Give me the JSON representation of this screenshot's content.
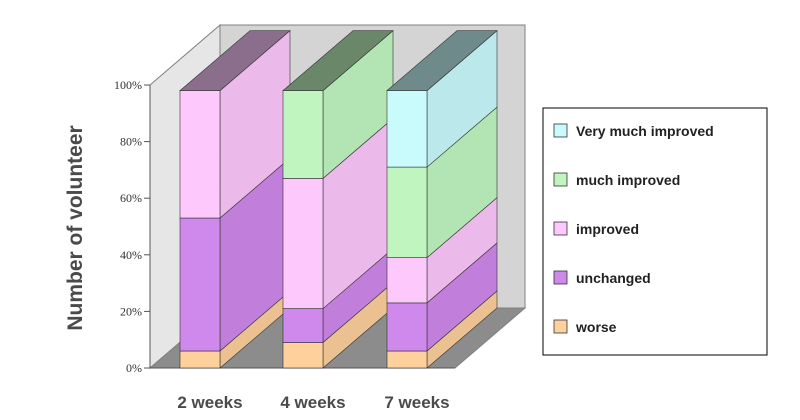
{
  "chart_data": {
    "type": "bar",
    "stacked": true,
    "three_d": true,
    "title": "",
    "xlabel": "",
    "ylabel": "Number of volunteer",
    "ylim": [
      0,
      100
    ],
    "yticks": [
      "0%",
      "20%",
      "40%",
      "60%",
      "80%",
      "100%"
    ],
    "categories": [
      "2 weeks",
      "4 weeks",
      "7 weeks"
    ],
    "series": [
      {
        "name": "worse",
        "values": [
          6,
          9,
          6
        ],
        "color": "#fdd09c"
      },
      {
        "name": "unchanged",
        "values": [
          47,
          12,
          17
        ],
        "color": "#cf88ec"
      },
      {
        "name": "improved",
        "values": [
          45,
          46,
          16
        ],
        "color": "#fdc8fc"
      },
      {
        "name": "much improved",
        "values": [
          0,
          31,
          32
        ],
        "color": "#c0f5c0"
      },
      {
        "name": "Very much improved",
        "values": [
          0,
          0,
          27
        ],
        "color": "#c9fbfd"
      }
    ],
    "legend_position": "right",
    "grid": false
  }
}
